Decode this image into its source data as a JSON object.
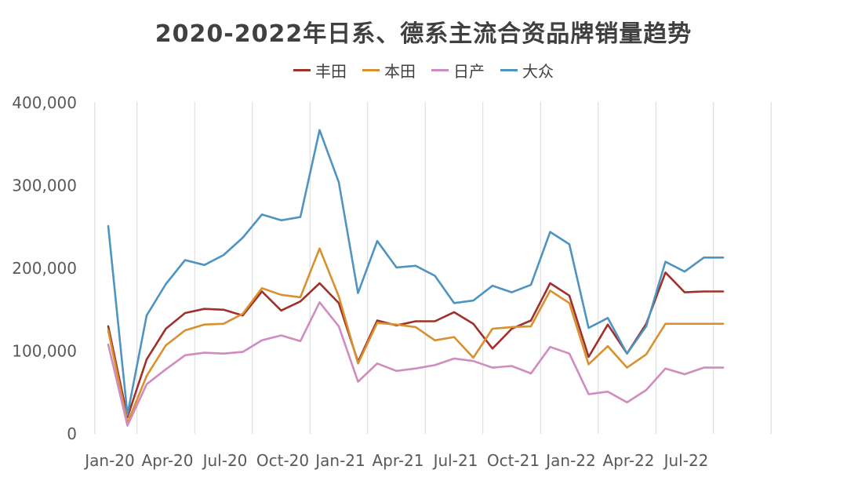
{
  "chart_data": {
    "type": "line",
    "title": "2020-2022年日系、德系主流合资品牌销量趋势",
    "xlabel": "",
    "ylabel": "",
    "ylim": [
      0,
      400000
    ],
    "yticks": [
      "0",
      "100,000",
      "200,000",
      "300,000",
      "400,000"
    ],
    "xticks": [
      "Jan-20",
      "Apr-20",
      "Jul-20",
      "Oct-20",
      "Jan-21",
      "Apr-21",
      "Jul-21",
      "Oct-21",
      "Jan-22",
      "Apr-22",
      "Jul-22"
    ],
    "grid": "vertical",
    "legend_position": "top-center",
    "categories": [
      "Jan-20",
      "Feb-20",
      "Mar-20",
      "Apr-20",
      "May-20",
      "Jun-20",
      "Jul-20",
      "Aug-20",
      "Sep-20",
      "Oct-20",
      "Nov-20",
      "Dec-20",
      "Jan-21",
      "Feb-21",
      "Mar-21",
      "Apr-21",
      "May-21",
      "Jun-21",
      "Jul-21",
      "Aug-21",
      "Sep-21",
      "Oct-21",
      "Nov-21",
      "Dec-21",
      "Jan-22",
      "Feb-22",
      "Mar-22",
      "Apr-22",
      "May-22",
      "Jun-22",
      "Jul-22",
      "Aug-22",
      "Sep-22",
      "Oct-22"
    ],
    "series": [
      {
        "name": "丰田",
        "color": "#a0302a",
        "values": [
          130000,
          20000,
          90000,
          127000,
          146000,
          151000,
          150000,
          143000,
          172000,
          149000,
          160000,
          182000,
          158000,
          87000,
          137000,
          131000,
          136000,
          136000,
          147000,
          133000,
          103000,
          127000,
          137000,
          182000,
          167000,
          93000,
          132000,
          97000,
          133000,
          195000,
          171000,
          172000,
          172000,
          172000
        ]
      },
      {
        "name": "本田",
        "color": "#d9902e",
        "values": [
          125000,
          13000,
          70000,
          107000,
          125000,
          132000,
          133000,
          145000,
          176000,
          168000,
          165000,
          224000,
          166000,
          85000,
          134000,
          132000,
          129000,
          113000,
          117000,
          92000,
          127000,
          129000,
          130000,
          173000,
          158000,
          84000,
          106000,
          80000,
          96000,
          133000,
          133000,
          133000,
          133000,
          133000
        ]
      },
      {
        "name": "日产",
        "color": "#d08cbe",
        "values": [
          108000,
          10000,
          60000,
          78000,
          95000,
          98000,
          97000,
          99000,
          113000,
          119000,
          112000,
          159000,
          130000,
          63000,
          85000,
          76000,
          79000,
          83000,
          91000,
          88000,
          80000,
          82000,
          73000,
          105000,
          97000,
          48000,
          51000,
          38000,
          53000,
          79000,
          72000,
          80000,
          80000,
          80000
        ]
      },
      {
        "name": "大众",
        "color": "#4f94c0",
        "values": [
          251000,
          23000,
          143000,
          181000,
          210000,
          204000,
          216000,
          237000,
          265000,
          258000,
          262000,
          367000,
          304000,
          170000,
          233000,
          201000,
          203000,
          191000,
          158000,
          161000,
          179000,
          171000,
          180000,
          244000,
          229000,
          128000,
          140000,
          97000,
          130000,
          208000,
          196000,
          213000,
          213000,
          213000
        ]
      }
    ]
  }
}
